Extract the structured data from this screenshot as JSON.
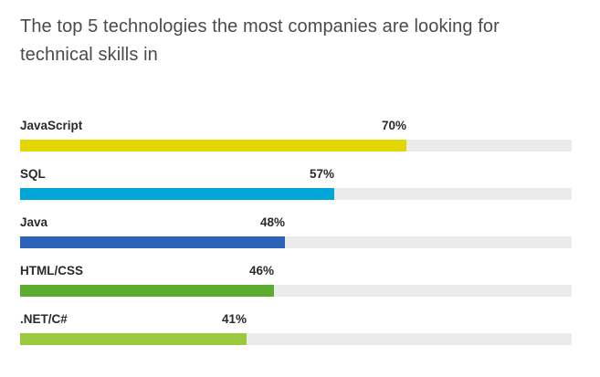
{
  "chart_data": {
    "type": "bar",
    "orientation": "horizontal",
    "title": "The top 5 technologies the most companies are looking for technical skills in",
    "categories": [
      "JavaScript",
      "SQL",
      "Java",
      "HTML/CSS",
      ".NET/C#"
    ],
    "values": [
      70,
      57,
      48,
      46,
      41
    ],
    "value_labels": [
      "70%",
      "57%",
      "48%",
      "46%",
      "41%"
    ],
    "unit": "%",
    "xlim": [
      0,
      100
    ],
    "grid": false,
    "colors": [
      "#e2d800",
      "#00a6d6",
      "#2b63b8",
      "#5aad2e",
      "#9ac93c"
    ],
    "track_color": "#ebebeb"
  }
}
